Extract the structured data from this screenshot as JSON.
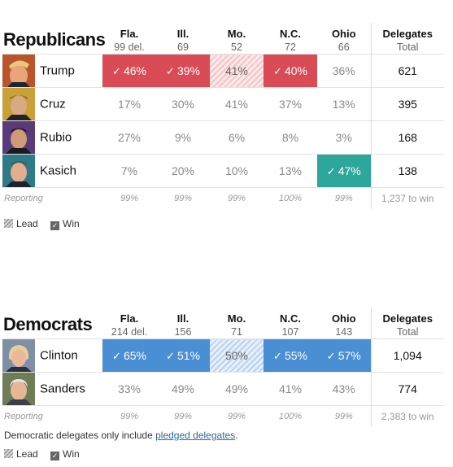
{
  "republicans": {
    "party": "Republicans",
    "states": [
      {
        "name": "Fla.",
        "sub": "99 del."
      },
      {
        "name": "Ill.",
        "sub": "69"
      },
      {
        "name": "Mo.",
        "sub": "52"
      },
      {
        "name": "N.C.",
        "sub": "72"
      },
      {
        "name": "Ohio",
        "sub": "66"
      }
    ],
    "delegates_header": {
      "name": "Delegates",
      "sub": "Total"
    },
    "candidates": [
      {
        "name": "Trump",
        "results": [
          "46%",
          "39%",
          "41%",
          "40%",
          "36%"
        ],
        "delegates": "621"
      },
      {
        "name": "Cruz",
        "results": [
          "17%",
          "30%",
          "41%",
          "37%",
          "13%"
        ],
        "delegates": "395"
      },
      {
        "name": "Rubio",
        "results": [
          "27%",
          "9%",
          "6%",
          "8%",
          "3%"
        ],
        "delegates": "168"
      },
      {
        "name": "Kasich",
        "results": [
          "7%",
          "20%",
          "10%",
          "13%",
          "47%"
        ],
        "delegates": "138"
      }
    ],
    "reporting_label": "Reporting",
    "reporting": [
      "99%",
      "99%",
      "99%",
      "100%",
      "99%"
    ],
    "to_win": "1,237 to win"
  },
  "democrats": {
    "party": "Democrats",
    "states": [
      {
        "name": "Fla.",
        "sub": "214 del."
      },
      {
        "name": "Ill.",
        "sub": "156"
      },
      {
        "name": "Mo.",
        "sub": "71"
      },
      {
        "name": "N.C.",
        "sub": "107"
      },
      {
        "name": "Ohio",
        "sub": "143"
      }
    ],
    "delegates_header": {
      "name": "Delegates",
      "sub": "Total"
    },
    "candidates": [
      {
        "name": "Clinton",
        "results": [
          "65%",
          "51%",
          "50%",
          "55%",
          "57%"
        ],
        "delegates": "1,094"
      },
      {
        "name": "Sanders",
        "results": [
          "33%",
          "49%",
          "49%",
          "41%",
          "43%"
        ],
        "delegates": "774"
      }
    ],
    "reporting_label": "Reporting",
    "reporting": [
      "99%",
      "99%",
      "99%",
      "100%",
      "99%"
    ],
    "to_win": "2,383 to win",
    "note_prefix": "Democratic delegates only include ",
    "note_link": "pledged delegates",
    "note_suffix": "."
  },
  "legend": {
    "lead": "Lead",
    "win": "Win"
  },
  "colors": {
    "rep_win": "#d94b55",
    "dem_win": "#4a8ed4",
    "kasich_win": "#2da69b"
  },
  "icons": {
    "win": "checkmark-icon",
    "lead": "hatch-pattern"
  }
}
